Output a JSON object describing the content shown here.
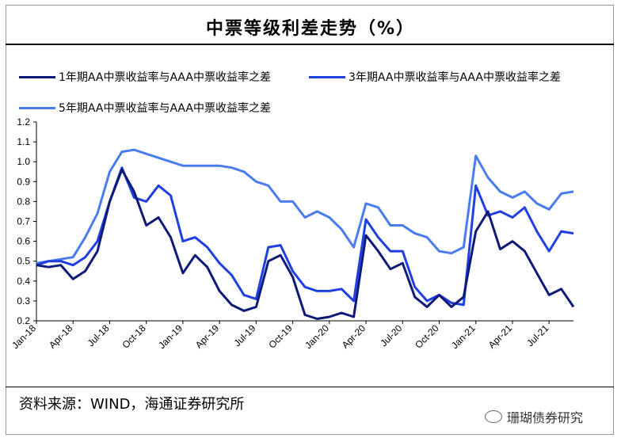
{
  "header": {
    "title": "中票等级利差走势（%）"
  },
  "footer": {
    "source": "资料来源：WIND，海通证券研究所",
    "watermark": "珊瑚债券研究"
  },
  "colors": {
    "series1": "#0d1a78",
    "series2": "#1f3fe0",
    "series3": "#4a7cf0"
  },
  "chart_data": {
    "type": "line",
    "title": "中票等级利差走势（%）",
    "xlabel": "",
    "ylabel": "",
    "ylim": [
      0.2,
      1.2
    ],
    "yticks": [
      "0.2",
      "0.3",
      "0.4",
      "0.5",
      "0.6",
      "0.7",
      "0.8",
      "0.9",
      "1.0",
      "1.1",
      "1.2"
    ],
    "xticks": [
      "Jan-18",
      "Apr-18",
      "Jul-18",
      "Oct-18",
      "Jan-19",
      "Apr-19",
      "Jul-19",
      "Oct-19",
      "Jan-20",
      "Apr-20",
      "Jul-20",
      "Oct-20",
      "Jan-21",
      "Apr-21",
      "Jul-21"
    ],
    "x_range": [
      "2018-01",
      "2021-09"
    ],
    "legend_position": "top",
    "x": [
      "2018-01",
      "2018-02",
      "2018-03",
      "2018-04",
      "2018-05",
      "2018-06",
      "2018-07",
      "2018-08",
      "2018-09",
      "2018-10",
      "2018-11",
      "2018-12",
      "2019-01",
      "2019-02",
      "2019-03",
      "2019-04",
      "2019-05",
      "2019-06",
      "2019-07",
      "2019-08",
      "2019-09",
      "2019-10",
      "2019-11",
      "2019-12",
      "2020-01",
      "2020-02",
      "2020-03",
      "2020-04",
      "2020-05",
      "2020-06",
      "2020-07",
      "2020-08",
      "2020-09",
      "2020-10",
      "2020-11",
      "2020-12",
      "2021-01",
      "2021-02",
      "2021-03",
      "2021-04",
      "2021-05",
      "2021-06",
      "2021-07",
      "2021-08",
      "2021-09"
    ],
    "series": [
      {
        "name": "1年期AA中票收益率与AAA中票收益率之差",
        "values": [
          0.48,
          0.47,
          0.48,
          0.41,
          0.45,
          0.55,
          0.8,
          0.96,
          0.85,
          0.68,
          0.72,
          0.62,
          0.44,
          0.53,
          0.47,
          0.35,
          0.28,
          0.25,
          0.27,
          0.5,
          0.53,
          0.42,
          0.23,
          0.21,
          0.22,
          0.24,
          0.22,
          0.63,
          0.55,
          0.46,
          0.49,
          0.32,
          0.27,
          0.33,
          0.27,
          0.32,
          0.65,
          0.75,
          0.56,
          0.6,
          0.55,
          0.44,
          0.33,
          0.36,
          0.27
        ]
      },
      {
        "name": "3年期AA中票收益率与AAA中票收益率之差",
        "values": [
          0.48,
          0.5,
          0.5,
          0.48,
          0.52,
          0.6,
          0.8,
          0.97,
          0.82,
          0.8,
          0.88,
          0.83,
          0.6,
          0.62,
          0.57,
          0.49,
          0.43,
          0.33,
          0.31,
          0.57,
          0.58,
          0.45,
          0.37,
          0.35,
          0.35,
          0.36,
          0.3,
          0.71,
          0.62,
          0.55,
          0.55,
          0.37,
          0.3,
          0.33,
          0.29,
          0.28,
          0.88,
          0.73,
          0.75,
          0.72,
          0.77,
          0.65,
          0.55,
          0.65,
          0.64
        ]
      },
      {
        "name": "5年期AA中票收益率与AAA中票收益率之差",
        "values": [
          0.49,
          0.5,
          0.51,
          0.52,
          0.62,
          0.74,
          0.95,
          1.05,
          1.06,
          1.04,
          1.02,
          1.0,
          0.98,
          0.98,
          0.98,
          0.98,
          0.97,
          0.95,
          0.9,
          0.88,
          0.8,
          0.8,
          0.72,
          0.75,
          0.72,
          0.66,
          0.57,
          0.79,
          0.77,
          0.68,
          0.68,
          0.64,
          0.62,
          0.55,
          0.54,
          0.57,
          1.03,
          0.92,
          0.85,
          0.82,
          0.85,
          0.79,
          0.76,
          0.84,
          0.85
        ]
      }
    ]
  }
}
